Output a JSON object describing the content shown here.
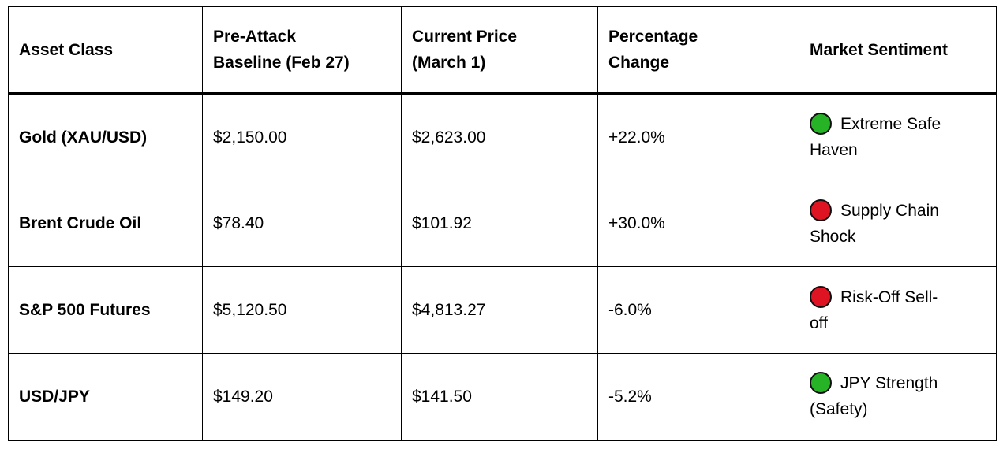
{
  "table": {
    "columns": [
      {
        "key": "asset",
        "label": "Asset Class"
      },
      {
        "key": "baseline",
        "label": "Pre-Attack Baseline (Feb 27)"
      },
      {
        "key": "current",
        "label": "Current Price (March 1)"
      },
      {
        "key": "change",
        "label": "Percentage Change"
      },
      {
        "key": "sentiment",
        "label": "Market Sentiment"
      }
    ],
    "rows": [
      {
        "asset": "Gold (XAU/USD)",
        "baseline": "$2,150.00",
        "current": "$2,623.00",
        "change": "+22.0%",
        "sentiment": {
          "indicator": "green",
          "label": "Extreme Safe Haven"
        }
      },
      {
        "asset": "Brent Crude Oil",
        "baseline": "$78.40",
        "current": "$101.92",
        "change": "+30.0%",
        "sentiment": {
          "indicator": "red",
          "label": "Supply Chain Shock"
        }
      },
      {
        "asset": "S&P 500 Futures",
        "baseline": "$5,120.50",
        "current": "$4,813.27",
        "change": "-6.0%",
        "sentiment": {
          "indicator": "red",
          "label": "Risk-Off Sell-off"
        }
      },
      {
        "asset": "USD/JPY",
        "baseline": "$149.20",
        "current": "$141.50",
        "change": "-5.2%",
        "sentiment": {
          "indicator": "green",
          "label": "JPY Strength (Safety)"
        }
      }
    ]
  },
  "colors": {
    "positive_indicator": "#26b426",
    "negative_indicator": "#df1423",
    "indicator_outline": "#111111",
    "border": "#000000",
    "text": "#000000",
    "background": "#ffffff"
  }
}
